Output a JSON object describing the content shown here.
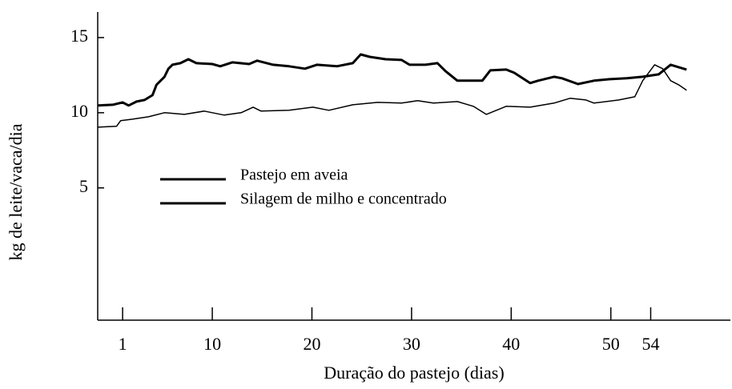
{
  "chart_data": {
    "type": "line",
    "xlabel": "Duração do pastejo (dias)",
    "ylabel": "kg de leite/vaca/dia",
    "xlim": [
      -1.5,
      62
    ],
    "ylim": [
      -3.8,
      16.7
    ],
    "xticks": [
      1,
      10,
      20,
      30,
      40,
      50,
      54
    ],
    "yticks": [
      5,
      10,
      15
    ],
    "series": [
      {
        "name": "Pastejo em aveia",
        "color": "#000000",
        "x": [
          -1.5,
          0.0,
          1.0,
          1.6,
          2.4,
          3.2,
          4.0,
          4.4,
          5.2,
          5.6,
          6.0,
          6.8,
          7.6,
          8.4,
          10.0,
          10.8,
          12.0,
          13.7,
          14.5,
          16.1,
          17.7,
          19.3,
          20.5,
          22.5,
          24.1,
          24.9,
          25.8,
          27.4,
          29.0,
          29.8,
          31.4,
          32.6,
          33.4,
          34.6,
          37.1,
          37.9,
          39.5,
          40.3,
          41.9,
          42.7,
          44.3,
          45.1,
          46.7,
          48.3,
          49.9,
          51.6,
          53.2,
          54.8,
          56.0,
          56.8,
          57.6
        ],
        "values": [
          10.48,
          10.53,
          10.69,
          10.48,
          10.74,
          10.85,
          11.17,
          11.86,
          12.39,
          12.93,
          13.19,
          13.3,
          13.56,
          13.3,
          13.24,
          13.09,
          13.35,
          13.24,
          13.46,
          13.19,
          13.09,
          12.93,
          13.19,
          13.09,
          13.3,
          13.88,
          13.72,
          13.56,
          13.51,
          13.19,
          13.19,
          13.3,
          12.77,
          12.13,
          12.13,
          12.82,
          12.87,
          12.66,
          11.97,
          12.13,
          12.39,
          12.29,
          11.91,
          12.13,
          12.23,
          12.29,
          12.39,
          12.55,
          13.19,
          13.03,
          12.87
        ]
      },
      {
        "name": "Silagem de milho e concentrado",
        "color": "#000000",
        "x": [
          -1.5,
          0.4,
          0.8,
          2.0,
          3.6,
          5.2,
          7.2,
          9.2,
          11.2,
          12.9,
          14.1,
          14.9,
          17.7,
          20.1,
          21.7,
          24.1,
          26.6,
          29.0,
          30.6,
          32.2,
          34.6,
          36.2,
          37.5,
          39.5,
          41.9,
          44.3,
          45.9,
          47.5,
          48.3,
          50.8,
          52.4,
          53.2,
          54.4,
          55.2,
          56.0,
          56.8,
          57.6
        ],
        "values": [
          9.04,
          9.1,
          9.47,
          9.57,
          9.73,
          10.0,
          9.89,
          10.11,
          9.84,
          10.0,
          10.37,
          10.11,
          10.16,
          10.37,
          10.16,
          10.53,
          10.69,
          10.64,
          10.8,
          10.64,
          10.74,
          10.43,
          9.89,
          10.43,
          10.37,
          10.64,
          10.96,
          10.85,
          10.64,
          10.85,
          11.06,
          12.13,
          13.19,
          12.93,
          12.13,
          11.86,
          11.49
        ]
      }
    ]
  }
}
